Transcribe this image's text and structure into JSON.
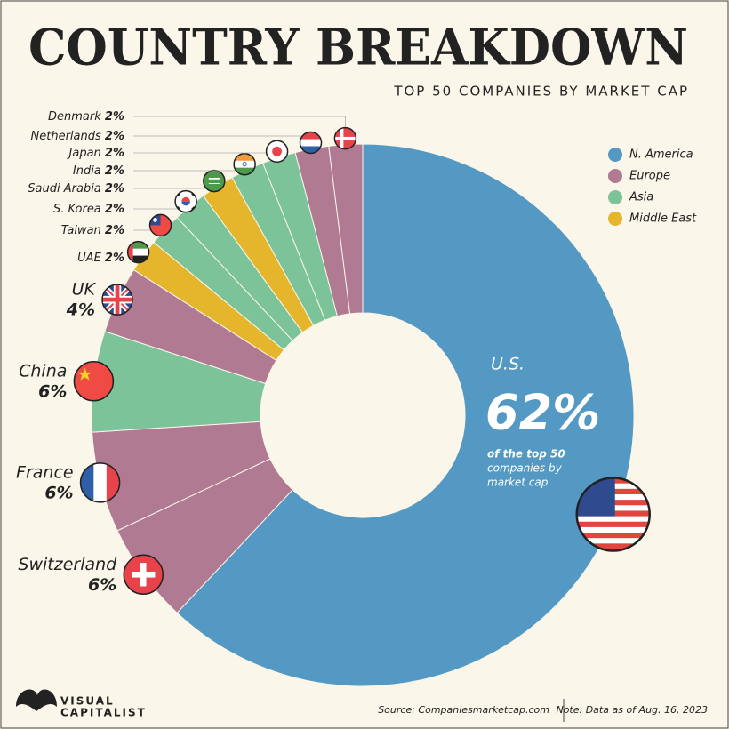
{
  "chart_data": {
    "type": "donut",
    "title": "COUNTRY BREAKDOWN",
    "subtitle": "TOP 50 COMPANIES BY MARKET CAP",
    "categories": [
      "U.S.",
      "Switzerland",
      "France",
      "China",
      "UK",
      "UAE",
      "Taiwan",
      "S. Korea",
      "Saudi Arabia",
      "India",
      "Japan",
      "Netherlands",
      "Denmark"
    ],
    "values": [
      62,
      6,
      6,
      6,
      4,
      2,
      2,
      2,
      2,
      2,
      2,
      2,
      2
    ],
    "value_labels": [
      "62%",
      "6%",
      "6%",
      "6%",
      "4%",
      "2%",
      "2%",
      "2%",
      "2%",
      "2%",
      "2%",
      "2%",
      "2%"
    ],
    "colors": [
      "#5499c4",
      "#b07a92",
      "#b07a92",
      "#7cc39a",
      "#b07a92",
      "#e5b52b",
      "#7cc39a",
      "#7cc39a",
      "#e5b52b",
      "#7cc39a",
      "#7cc39a",
      "#b07a92",
      "#b07a92"
    ],
    "legend": [
      {
        "name": "N. America",
        "color": "#5499c4"
      },
      {
        "name": "Europe",
        "color": "#b07a92"
      },
      {
        "name": "Asia",
        "color": "#7cc39a"
      },
      {
        "name": "Middle East",
        "color": "#e5b52b"
      }
    ],
    "annotation": [
      "of the top 50",
      "companies by",
      "market cap"
    ]
  },
  "footer": {
    "logo": [
      "VISUAL",
      "CAPITALIST"
    ],
    "source": "Source: Companiesmarketcap.com",
    "note": "Note: Data as of Aug. 16, 2023"
  }
}
